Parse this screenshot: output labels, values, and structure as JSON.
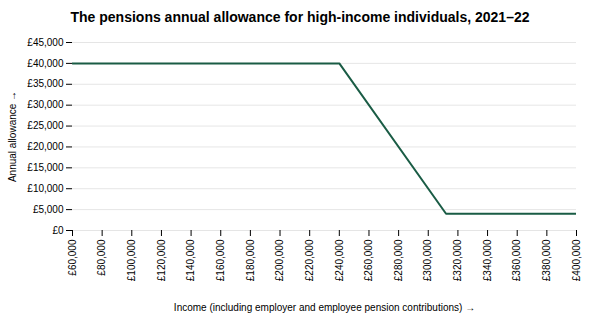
{
  "chart_data": {
    "type": "line",
    "title": "The pensions annual allowance for high-income individuals, 2021–22",
    "xlabel": "Income (including employer and employee pension contributions)",
    "ylabel": "Annual allowance",
    "x": [
      60000,
      240000,
      312000,
      400000
    ],
    "values": [
      40000,
      40000,
      4000,
      4000
    ],
    "color": "#1a5c45",
    "xlim": [
      60000,
      400000
    ],
    "ylim": [
      0,
      45000
    ],
    "xticks": [
      {
        "value": 60000,
        "label": "£60,000"
      },
      {
        "value": 80000,
        "label": "£80,000"
      },
      {
        "value": 100000,
        "label": "£100,000"
      },
      {
        "value": 120000,
        "label": "£120,000"
      },
      {
        "value": 140000,
        "label": "£140,000"
      },
      {
        "value": 160000,
        "label": "£160,000"
      },
      {
        "value": 180000,
        "label": "£180,000"
      },
      {
        "value": 200000,
        "label": "£200,000"
      },
      {
        "value": 220000,
        "label": "£220,000"
      },
      {
        "value": 240000,
        "label": "£240,000"
      },
      {
        "value": 260000,
        "label": "£260,000"
      },
      {
        "value": 280000,
        "label": "£280,000"
      },
      {
        "value": 300000,
        "label": "£300,000"
      },
      {
        "value": 320000,
        "label": "£320,000"
      },
      {
        "value": 340000,
        "label": "£340,000"
      },
      {
        "value": 360000,
        "label": "£360,000"
      },
      {
        "value": 380000,
        "label": "£380,000"
      },
      {
        "value": 400000,
        "label": "£400,000"
      }
    ],
    "yticks": [
      {
        "value": 0,
        "label": "£0"
      },
      {
        "value": 5000,
        "label": "£5,000"
      },
      {
        "value": 10000,
        "label": "£10,000"
      },
      {
        "value": 15000,
        "label": "£15,000"
      },
      {
        "value": 20000,
        "label": "£20,000"
      },
      {
        "value": 25000,
        "label": "£25,000"
      },
      {
        "value": 30000,
        "label": "£30,000"
      },
      {
        "value": 35000,
        "label": "£35,000"
      },
      {
        "value": 40000,
        "label": "£40,000"
      },
      {
        "value": 45000,
        "label": "£45,000"
      }
    ],
    "grid": true
  }
}
